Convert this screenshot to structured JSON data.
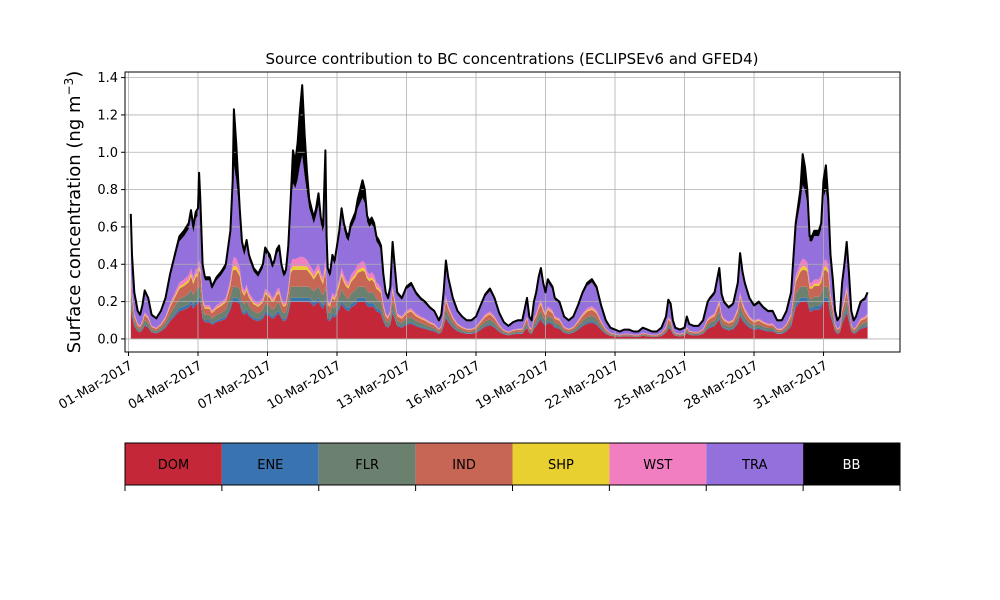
{
  "chart_data": {
    "type": "area",
    "stacked": true,
    "title": "Source contribution to BC concentrations (ECLIPSEv6 and GFED4)",
    "ylabel": "Surface concentration (ng m",
    "ylabel_superscript": "−3",
    "ylabel_suffix": ")",
    "xlabel": "",
    "x_unit": "days since 01-Mar-2017",
    "xlim": [
      -0.15,
      33.3
    ],
    "ylim": [
      -0.07,
      1.43
    ],
    "grid": true,
    "x_ticks": [
      {
        "value": 0,
        "label": "01-Mar-2017"
      },
      {
        "value": 3,
        "label": "04-Mar-2017"
      },
      {
        "value": 6,
        "label": "07-Mar-2017"
      },
      {
        "value": 9,
        "label": "10-Mar-2017"
      },
      {
        "value": 12,
        "label": "13-Mar-2017"
      },
      {
        "value": 15,
        "label": "16-Mar-2017"
      },
      {
        "value": 18,
        "label": "19-Mar-2017"
      },
      {
        "value": 21,
        "label": "22-Mar-2017"
      },
      {
        "value": 24,
        "label": "25-Mar-2017"
      },
      {
        "value": 27,
        "label": "28-Mar-2017"
      },
      {
        "value": 30,
        "label": "31-Mar-2017"
      }
    ],
    "y_ticks": [
      {
        "value": 0.0,
        "label": "0.0"
      },
      {
        "value": 0.2,
        "label": "0.2"
      },
      {
        "value": 0.4,
        "label": "0.4"
      },
      {
        "value": 0.6,
        "label": "0.6"
      },
      {
        "value": 0.8,
        "label": "0.8"
      },
      {
        "value": 1.0,
        "label": "1.0"
      },
      {
        "value": 1.2,
        "label": "1.2"
      },
      {
        "value": 1.4,
        "label": "1.4"
      }
    ],
    "total_points": [
      [
        0.1,
        0.67
      ],
      [
        0.15,
        0.45
      ],
      [
        0.25,
        0.25
      ],
      [
        0.4,
        0.15
      ],
      [
        0.5,
        0.13
      ],
      [
        0.6,
        0.18
      ],
      [
        0.7,
        0.26
      ],
      [
        0.85,
        0.22
      ],
      [
        1.0,
        0.13
      ],
      [
        1.2,
        0.11
      ],
      [
        1.4,
        0.15
      ],
      [
        1.6,
        0.22
      ],
      [
        1.8,
        0.35
      ],
      [
        2.0,
        0.45
      ],
      [
        2.2,
        0.55
      ],
      [
        2.4,
        0.58
      ],
      [
        2.6,
        0.62
      ],
      [
        2.7,
        0.69
      ],
      [
        2.8,
        0.6
      ],
      [
        2.9,
        0.68
      ],
      [
        3.0,
        0.7
      ],
      [
        3.05,
        0.89
      ],
      [
        3.1,
        0.75
      ],
      [
        3.2,
        0.4
      ],
      [
        3.3,
        0.33
      ],
      [
        3.5,
        0.33
      ],
      [
        3.6,
        0.28
      ],
      [
        3.8,
        0.33
      ],
      [
        4.0,
        0.36
      ],
      [
        4.2,
        0.4
      ],
      [
        4.4,
        0.58
      ],
      [
        4.5,
        0.85
      ],
      [
        4.55,
        1.23
      ],
      [
        4.65,
        1.05
      ],
      [
        4.8,
        0.7
      ],
      [
        4.9,
        0.52
      ],
      [
        5.0,
        0.47
      ],
      [
        5.1,
        0.53
      ],
      [
        5.2,
        0.45
      ],
      [
        5.4,
        0.38
      ],
      [
        5.6,
        0.35
      ],
      [
        5.8,
        0.4
      ],
      [
        5.9,
        0.49
      ],
      [
        6.1,
        0.45
      ],
      [
        6.2,
        0.4
      ],
      [
        6.3,
        0.42
      ],
      [
        6.4,
        0.48
      ],
      [
        6.5,
        0.5
      ],
      [
        6.6,
        0.4
      ],
      [
        6.7,
        0.35
      ],
      [
        6.8,
        0.37
      ],
      [
        6.9,
        0.5
      ],
      [
        7.0,
        0.75
      ],
      [
        7.1,
        1.01
      ],
      [
        7.2,
        0.95
      ],
      [
        7.3,
        1.05
      ],
      [
        7.4,
        1.22
      ],
      [
        7.5,
        1.36
      ],
      [
        7.6,
        1.1
      ],
      [
        7.7,
        0.9
      ],
      [
        7.8,
        0.75
      ],
      [
        7.9,
        0.7
      ],
      [
        8.0,
        0.65
      ],
      [
        8.1,
        0.7
      ],
      [
        8.2,
        0.78
      ],
      [
        8.3,
        0.65
      ],
      [
        8.4,
        0.6
      ],
      [
        8.5,
        1.01
      ],
      [
        8.55,
        0.55
      ],
      [
        8.6,
        0.38
      ],
      [
        8.7,
        0.35
      ],
      [
        8.8,
        0.45
      ],
      [
        8.9,
        0.42
      ],
      [
        9.0,
        0.5
      ],
      [
        9.1,
        0.58
      ],
      [
        9.2,
        0.7
      ],
      [
        9.3,
        0.62
      ],
      [
        9.4,
        0.57
      ],
      [
        9.5,
        0.55
      ],
      [
        9.6,
        0.62
      ],
      [
        9.7,
        0.65
      ],
      [
        9.8,
        0.68
      ],
      [
        9.9,
        0.75
      ],
      [
        10.0,
        0.8
      ],
      [
        10.1,
        0.85
      ],
      [
        10.2,
        0.8
      ],
      [
        10.3,
        0.66
      ],
      [
        10.4,
        0.63
      ],
      [
        10.5,
        0.65
      ],
      [
        10.6,
        0.62
      ],
      [
        10.7,
        0.55
      ],
      [
        10.8,
        0.53
      ],
      [
        10.9,
        0.5
      ],
      [
        11.0,
        0.35
      ],
      [
        11.1,
        0.25
      ],
      [
        11.2,
        0.22
      ],
      [
        11.3,
        0.28
      ],
      [
        11.4,
        0.52
      ],
      [
        11.5,
        0.38
      ],
      [
        11.6,
        0.25
      ],
      [
        11.8,
        0.22
      ],
      [
        12.0,
        0.28
      ],
      [
        12.2,
        0.3
      ],
      [
        12.4,
        0.25
      ],
      [
        12.6,
        0.22
      ],
      [
        12.8,
        0.2
      ],
      [
        13.0,
        0.17
      ],
      [
        13.2,
        0.15
      ],
      [
        13.4,
        0.1
      ],
      [
        13.5,
        0.13
      ],
      [
        13.6,
        0.25
      ],
      [
        13.7,
        0.42
      ],
      [
        13.8,
        0.33
      ],
      [
        14.0,
        0.22
      ],
      [
        14.2,
        0.15
      ],
      [
        14.4,
        0.12
      ],
      [
        14.6,
        0.1
      ],
      [
        14.8,
        0.1
      ],
      [
        15.0,
        0.12
      ],
      [
        15.2,
        0.18
      ],
      [
        15.4,
        0.24
      ],
      [
        15.6,
        0.27
      ],
      [
        15.8,
        0.22
      ],
      [
        16.0,
        0.14
      ],
      [
        16.2,
        0.09
      ],
      [
        16.4,
        0.07
      ],
      [
        16.6,
        0.09
      ],
      [
        16.8,
        0.1
      ],
      [
        17.0,
        0.1
      ],
      [
        17.2,
        0.22
      ],
      [
        17.3,
        0.12
      ],
      [
        17.4,
        0.1
      ],
      [
        17.5,
        0.2
      ],
      [
        17.6,
        0.25
      ],
      [
        17.7,
        0.33
      ],
      [
        17.8,
        0.38
      ],
      [
        17.9,
        0.3
      ],
      [
        18.0,
        0.25
      ],
      [
        18.1,
        0.32
      ],
      [
        18.2,
        0.3
      ],
      [
        18.3,
        0.28
      ],
      [
        18.4,
        0.22
      ],
      [
        18.6,
        0.2
      ],
      [
        18.8,
        0.12
      ],
      [
        19.0,
        0.1
      ],
      [
        19.2,
        0.12
      ],
      [
        19.4,
        0.18
      ],
      [
        19.6,
        0.25
      ],
      [
        19.8,
        0.3
      ],
      [
        20.0,
        0.32
      ],
      [
        20.2,
        0.28
      ],
      [
        20.4,
        0.18
      ],
      [
        20.6,
        0.1
      ],
      [
        20.8,
        0.06
      ],
      [
        21.0,
        0.05
      ],
      [
        21.2,
        0.04
      ],
      [
        21.4,
        0.05
      ],
      [
        21.6,
        0.05
      ],
      [
        21.8,
        0.04
      ],
      [
        22.0,
        0.04
      ],
      [
        22.2,
        0.06
      ],
      [
        22.4,
        0.05
      ],
      [
        22.6,
        0.04
      ],
      [
        22.8,
        0.04
      ],
      [
        23.0,
        0.06
      ],
      [
        23.2,
        0.12
      ],
      [
        23.3,
        0.21
      ],
      [
        23.4,
        0.19
      ],
      [
        23.5,
        0.1
      ],
      [
        23.6,
        0.06
      ],
      [
        23.8,
        0.05
      ],
      [
        24.0,
        0.06
      ],
      [
        24.1,
        0.12
      ],
      [
        24.2,
        0.08
      ],
      [
        24.4,
        0.07
      ],
      [
        24.6,
        0.07
      ],
      [
        24.8,
        0.1
      ],
      [
        25.0,
        0.2
      ],
      [
        25.1,
        0.22
      ],
      [
        25.3,
        0.25
      ],
      [
        25.5,
        0.38
      ],
      [
        25.6,
        0.24
      ],
      [
        25.7,
        0.2
      ],
      [
        25.9,
        0.17
      ],
      [
        26.1,
        0.19
      ],
      [
        26.3,
        0.3
      ],
      [
        26.4,
        0.46
      ],
      [
        26.5,
        0.36
      ],
      [
        26.6,
        0.3
      ],
      [
        26.8,
        0.22
      ],
      [
        27.0,
        0.18
      ],
      [
        27.2,
        0.2
      ],
      [
        27.4,
        0.17
      ],
      [
        27.6,
        0.15
      ],
      [
        27.8,
        0.15
      ],
      [
        28.0,
        0.1
      ],
      [
        28.2,
        0.1
      ],
      [
        28.4,
        0.15
      ],
      [
        28.6,
        0.25
      ],
      [
        28.8,
        0.62
      ],
      [
        29.0,
        0.8
      ],
      [
        29.1,
        0.99
      ],
      [
        29.2,
        0.92
      ],
      [
        29.3,
        0.8
      ],
      [
        29.4,
        0.55
      ],
      [
        29.5,
        0.55
      ],
      [
        29.6,
        0.58
      ],
      [
        29.8,
        0.58
      ],
      [
        29.9,
        0.62
      ],
      [
        30.0,
        0.85
      ],
      [
        30.1,
        0.93
      ],
      [
        30.2,
        0.75
      ],
      [
        30.3,
        0.45
      ],
      [
        30.4,
        0.32
      ],
      [
        30.5,
        0.15
      ],
      [
        30.6,
        0.1
      ],
      [
        30.7,
        0.12
      ],
      [
        30.8,
        0.3
      ],
      [
        30.9,
        0.4
      ],
      [
        31.0,
        0.52
      ],
      [
        31.1,
        0.35
      ],
      [
        31.2,
        0.15
      ],
      [
        31.3,
        0.1
      ],
      [
        31.4,
        0.12
      ],
      [
        31.6,
        0.2
      ],
      [
        31.8,
        0.22
      ],
      [
        31.9,
        0.25
      ]
    ],
    "series": [
      {
        "name": "DOM",
        "color": "#c42838",
        "ratio": 0.27,
        "cap": 0.2
      },
      {
        "name": "ENE",
        "color": "#3a74b0",
        "ratio": 0.03,
        "cap": 0.02
      },
      {
        "name": "FLR",
        "color": "#6c806f",
        "ratio": 0.09,
        "cap": 0.06
      },
      {
        "name": "IND",
        "color": "#c86656",
        "ratio": 0.1,
        "cap": 0.09
      },
      {
        "name": "SHP",
        "color": "#e7d02f",
        "ratio": 0.02,
        "cap": 0.02
      },
      {
        "name": "WST",
        "color": "#f07ec0",
        "ratio": 0.04,
        "cap": 0.05
      },
      {
        "name": "TRA",
        "color": "#9370db",
        "ratio": 0.4,
        "cap": 1.0
      },
      {
        "name": "BB",
        "color": "#000000",
        "ratio": 0.05,
        "cap": 1.0
      }
    ]
  }
}
